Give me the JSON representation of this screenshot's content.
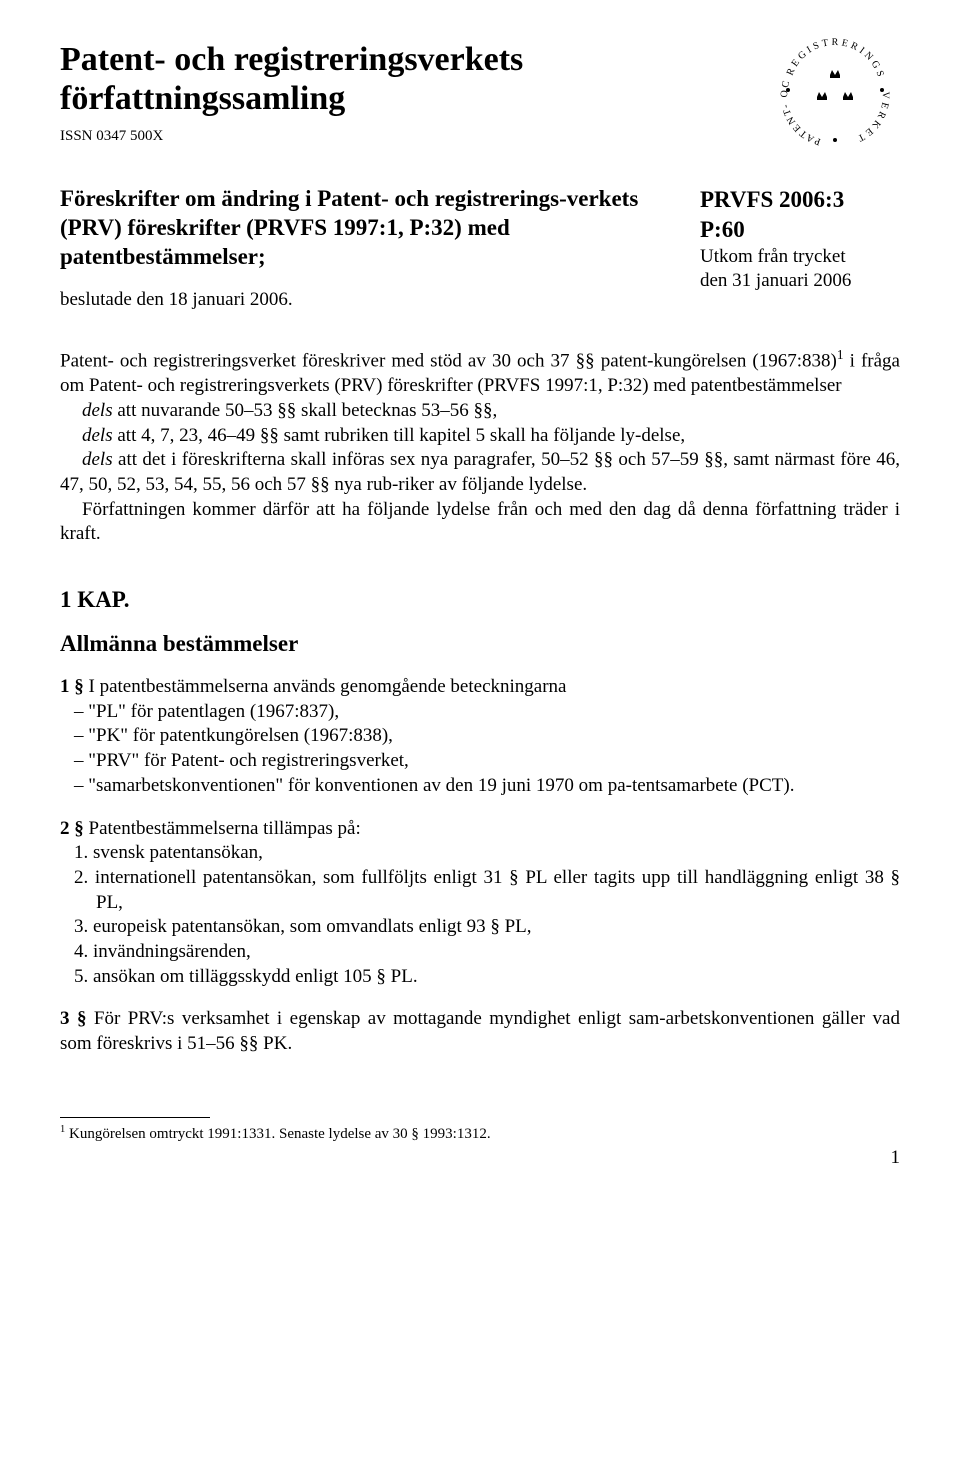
{
  "header": {
    "title_line1": "Patent- och registreringsverkets",
    "title_line2": "författningssamling",
    "issn": "ISSN 0347 500X",
    "logo_text_top": "REGISTRERINGS",
    "logo_text_left": "PATENT-",
    "logo_text_right": "VERKET",
    "logo_text_bottom": "OCH"
  },
  "subtitle": "Föreskrifter om ändring i Patent- och registrerings-verkets (PRV) föreskrifter (PRVFS 1997:1, P:32) med patentbestämmelser;",
  "decided": "beslutade den 18 januari 2006.",
  "publication": {
    "id": "PRVFS 2006:3",
    "p": "P:60",
    "issued1": "Utkom från trycket",
    "issued2": "den 31 januari 2006"
  },
  "body": {
    "p1a": "Patent- och registreringsverket föreskriver med stöd av 30 och 37 §§ patent-kungörelsen (1967:838)",
    "p1b": " i fråga om Patent- och registreringsverkets (PRV) föreskrifter (PRVFS 1997:1, P:32) med patentbestämmelser",
    "d1": " att nuvarande 50–53 §§ skall betecknas 53–56 §§,",
    "d2": " att 4, 7, 23, 46–49 §§ samt rubriken till kapitel 5 skall ha följande ly-delse,",
    "d3": " att det i föreskrifterna skall införas sex nya paragrafer, 50–52 §§ och 57–59 §§, samt närmast före 46, 47, 50, 52, 53, 54, 55, 56 och 57 §§ nya rub-riker av följande lydelse.",
    "p2": "Författningen kommer därför att ha följande lydelse från och med den dag då denna författning träder i kraft."
  },
  "chapter1": {
    "title": "1 KAP.",
    "heading": "Allmänna bestämmelser",
    "s1_lead": "1 §   I patentbestämmelserna används genomgående beteckningarna",
    "s1_items": [
      "–  \"PL\" för patentlagen (1967:837),",
      "–  \"PK\" för patentkungörelsen (1967:838),",
      "–  \"PRV\" för Patent- och registreringsverket,",
      "–  \"samarbetskonventionen\" för konventionen av den 19 juni 1970 om pa-tentsamarbete (PCT)."
    ],
    "s2_lead": "2 §   Patentbestämmelserna tillämpas på:",
    "s2_items": [
      "1.  svensk patentansökan,",
      "2.  internationell patentansökan, som fullföljts enligt 31 § PL eller tagits upp till handläggning enligt 38 § PL,",
      "3.  europeisk patentansökan, som omvandlats enligt 93 § PL,",
      "4.  invändningsärenden,",
      "5.  ansökan om tilläggsskydd enligt 105 § PL."
    ],
    "s3": "3 §   För PRV:s verksamhet i egenskap av mottagande myndighet enligt sam-arbetskonventionen gäller vad som föreskrivs i 51–56 §§ PK."
  },
  "footnote": {
    "marker": "1",
    "text": " Kungörelsen omtryckt 1991:1331. Senaste lydelse av 30 § 1993:1312."
  },
  "page_number": "1",
  "dels_word": "dels"
}
